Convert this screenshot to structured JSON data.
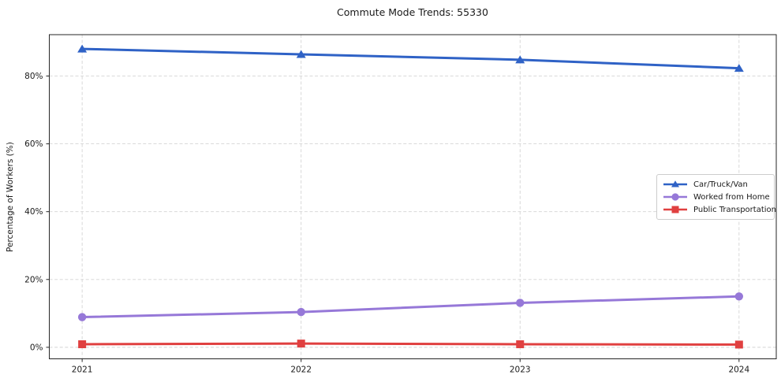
{
  "figure": {
    "background": "#ffffff",
    "axis_color": "#262626",
    "gridline_color": "#d4d4d4"
  },
  "chart_data": {
    "type": "line",
    "title": "Commute Mode Trends: 55330",
    "xlabel": "",
    "ylabel": "Percentage of Workers (%)",
    "categories": [
      2021,
      2022,
      2023,
      2024
    ],
    "x_tick_labels": [
      "2021",
      "2022",
      "2023",
      "2024"
    ],
    "y_ticks": [
      0,
      20,
      40,
      60,
      80
    ],
    "y_tick_labels": [
      "0%",
      "20%",
      "40%",
      "60%",
      "80%"
    ],
    "xlim": [
      2020.85,
      2024.17
    ],
    "ylim": [
      -3.4,
      92.2
    ],
    "grid": true,
    "grid_style": "dashed",
    "legend_position": "center-right",
    "series": [
      {
        "name": "Car/Truck/Van",
        "marker": "triangle",
        "color": "#2f62c6",
        "values": [
          88.0,
          86.4,
          84.8,
          82.3
        ]
      },
      {
        "name": "Worked from Home",
        "marker": "circle",
        "color": "#9678d8",
        "values": [
          8.9,
          10.4,
          13.1,
          15.0
        ]
      },
      {
        "name": "Public Transportation",
        "marker": "square",
        "color": "#e04040",
        "values": [
          0.9,
          1.1,
          0.9,
          0.8
        ]
      }
    ]
  }
}
